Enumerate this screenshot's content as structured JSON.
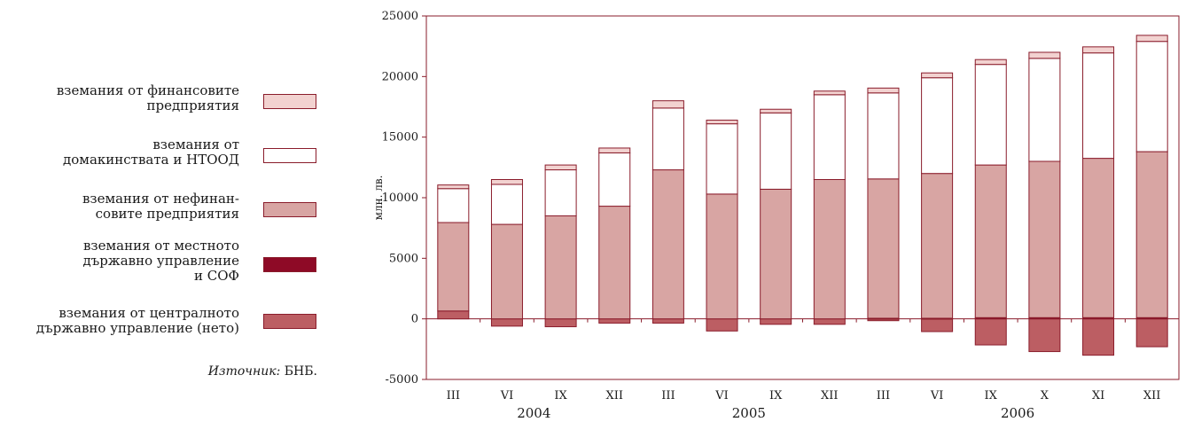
{
  "legend": {
    "items": [
      {
        "lines": [
          "вземания от финансовите",
          "предприятия"
        ],
        "color": "#f2d2d0"
      },
      {
        "lines": [
          "вземания от",
          "домакинствата и НТООД"
        ],
        "color": "#ffffff"
      },
      {
        "lines": [
          "вземания от нефинан-",
          "совите предприятия"
        ],
        "color": "#d8a5a3"
      },
      {
        "lines": [
          "вземания от местното",
          "държавно управление",
          "и СОФ"
        ],
        "color": "#8e0a26"
      },
      {
        "lines": [
          "вземания от централното",
          "държавно управление (нето)"
        ],
        "color": "#bc5e63"
      }
    ],
    "source_label": "Източник:",
    "source_value": "БНБ."
  },
  "chart_data": {
    "type": "bar",
    "stacked": true,
    "ylabel": "млн. лв.",
    "ylim": [
      -5000,
      25000
    ],
    "yticks": [
      -5000,
      0,
      5000,
      10000,
      15000,
      20000,
      25000
    ],
    "categories": [
      "III",
      "VI",
      "IX",
      "XII",
      "III",
      "VI",
      "IX",
      "XII",
      "III",
      "VI",
      "IX",
      "X",
      "XI",
      "XII"
    ],
    "year_labels": [
      "2004",
      "2005",
      "2006"
    ],
    "series": [
      {
        "name": "вземания от централното държавно управление (нето)",
        "color": "#bc5e63",
        "values": [
          650,
          -600,
          -650,
          -350,
          -350,
          -1000,
          -450,
          -450,
          -150,
          -1050,
          -2150,
          -2700,
          -3000,
          -2300
        ]
      },
      {
        "name": "вземания от местното държавно управление и СОФ",
        "color": "#8e0a26",
        "values": [
          0,
          0,
          0,
          0,
          0,
          0,
          0,
          0,
          50,
          50,
          100,
          100,
          100,
          100
        ]
      },
      {
        "name": "вземания от нефинансовите предприятия",
        "color": "#d8a5a3",
        "values": [
          7300,
          7800,
          8500,
          9300,
          12300,
          10300,
          10700,
          11500,
          11500,
          11950,
          12600,
          12900,
          13150,
          13700
        ]
      },
      {
        "name": "вземания от домакинствата и НТООД",
        "color": "#ffffff",
        "values": [
          2800,
          3300,
          3800,
          4400,
          5100,
          5800,
          6300,
          7000,
          7100,
          7900,
          8300,
          8500,
          8700,
          9100
        ]
      },
      {
        "name": "вземания от финансовите предприятия",
        "color": "#f2d2d0",
        "values": [
          300,
          400,
          400,
          400,
          600,
          300,
          300,
          300,
          400,
          400,
          400,
          500,
          500,
          500
        ]
      }
    ]
  }
}
